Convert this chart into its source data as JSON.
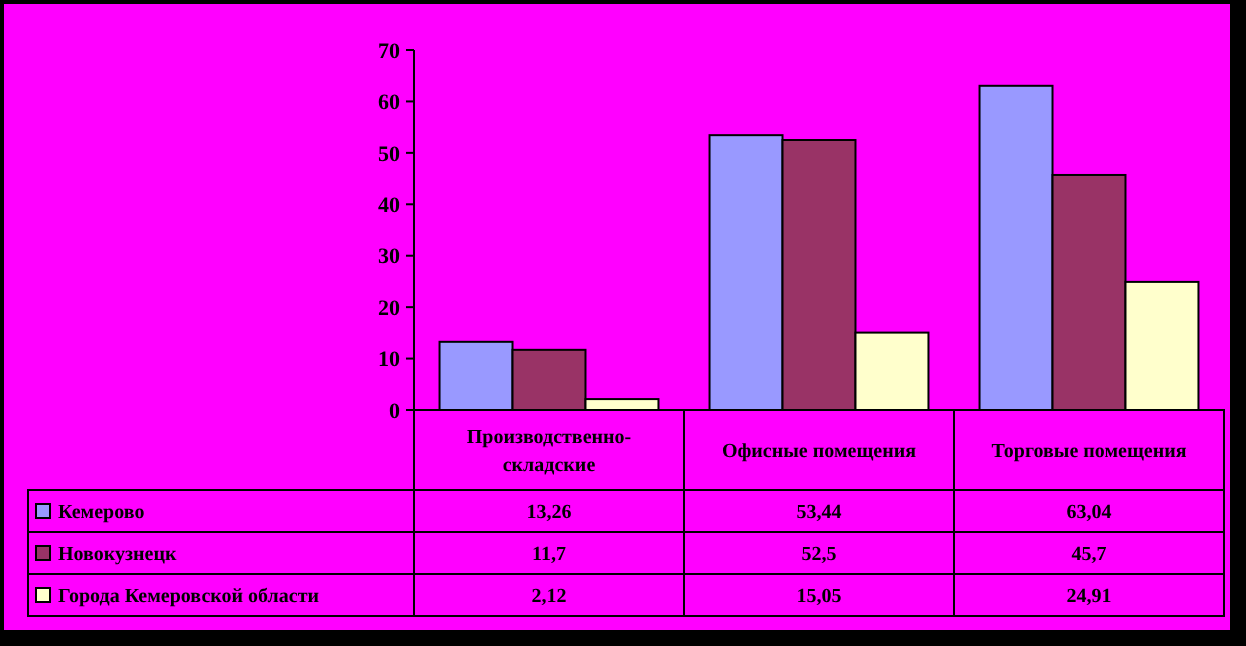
{
  "chart_data": {
    "type": "bar",
    "categories": [
      "Производственно-складские",
      "Офисные помещения",
      "Торговые помещения"
    ],
    "series": [
      {
        "name": "Кемерово",
        "color": "#9999ff",
        "values": [
          13.26,
          53.44,
          63.04
        ],
        "value_labels": [
          "13,26",
          "53,44",
          "63,04"
        ]
      },
      {
        "name": "Новокузнецк",
        "color": "#993366",
        "values": [
          11.7,
          52.5,
          45.7
        ],
        "value_labels": [
          "11,7",
          "52,5",
          "45,7"
        ]
      },
      {
        "name": "Города Кемеровской области",
        "color": "#ffffcc",
        "values": [
          2.12,
          15.05,
          24.91
        ],
        "value_labels": [
          "2,12",
          "15,05",
          "24,91"
        ]
      }
    ],
    "ylim": [
      0,
      70
    ],
    "yticks": [
      0,
      10,
      20,
      30,
      40,
      50,
      60,
      70
    ],
    "legend": "bottom",
    "grid": false
  }
}
